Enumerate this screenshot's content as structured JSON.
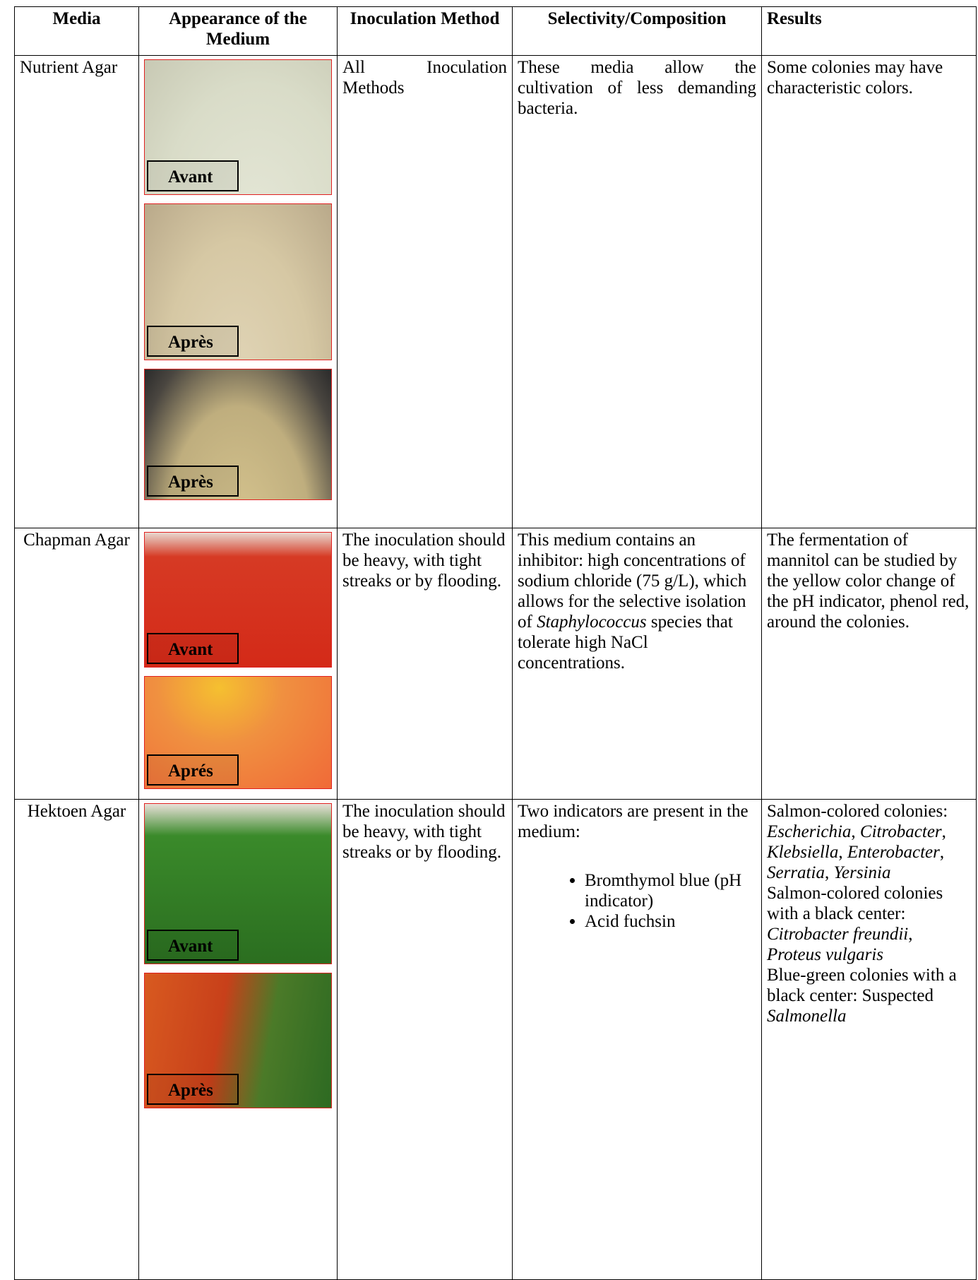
{
  "table": {
    "header": [
      "Media",
      "Appearance of the Medium",
      "Inoculation Method",
      "Selectivity/Composition",
      "Results"
    ],
    "rows": [
      {
        "media": "Nutrient Agar",
        "images": [
          "Avant",
          "Après",
          "Après"
        ],
        "inoculation": "All Inoculation Methods",
        "selectivity": [
          [
            {
              "t": "These media allow the cultivation of less demanding bacteria."
            }
          ]
        ],
        "results": [
          [
            {
              "t": "Some colonies may have characteristic colors."
            }
          ]
        ]
      },
      {
        "media": "Chapman Agar",
        "images": [
          "Avant",
          "Aprés"
        ],
        "inoculation": "The inoculation should be heavy, with tight streaks or by flooding.",
        "selectivity": [
          [
            {
              "t": "This medium contains an inhibitor: high concentrations of sodium chloride (75 g/L), which allows for the selective isolation of "
            },
            {
              "em": "Staphylococcus"
            },
            {
              "t": " species that tolerate high NaCl concentrations."
            }
          ]
        ],
        "results": [
          [
            {
              "t": "The fermentation of mannitol can be studied by the yellow color change of the pH indicator, phenol red, around the colonies."
            }
          ]
        ]
      },
      {
        "media": "Hektoen Agar",
        "images": [
          "Avant",
          "Après"
        ],
        "inoculation": "The inoculation should be heavy, with tight streaks or by flooding.",
        "selectivity": [
          [
            {
              "t": "Two indicators are present in the medium:"
            }
          ]
        ],
        "selectivity_list": [
          "Bromthymol blue (pH indicator)",
          "Acid fuchsin"
        ],
        "results": [
          [
            {
              "t": "Salmon-colored colonies: "
            },
            {
              "em": "Escherichia"
            },
            {
              "t": ", "
            },
            {
              "em": "Citrobacter"
            },
            {
              "t": ", "
            },
            {
              "em": "Klebsiella"
            },
            {
              "t": ", "
            },
            {
              "em": "Enterobacter"
            },
            {
              "t": ", "
            },
            {
              "em": "Serratia"
            },
            {
              "t": ", "
            },
            {
              "em": "Yersinia"
            }
          ],
          [
            {
              "t": "Salmon-colored colonies with a black center: "
            },
            {
              "em": "Citrobacter freundii"
            },
            {
              "t": ", "
            },
            {
              "em": "Proteus vulgaris"
            }
          ],
          [
            {
              "t": "Blue-green colonies with a black center: Suspected "
            },
            {
              "em": "Salmonella"
            }
          ]
        ]
      }
    ]
  }
}
